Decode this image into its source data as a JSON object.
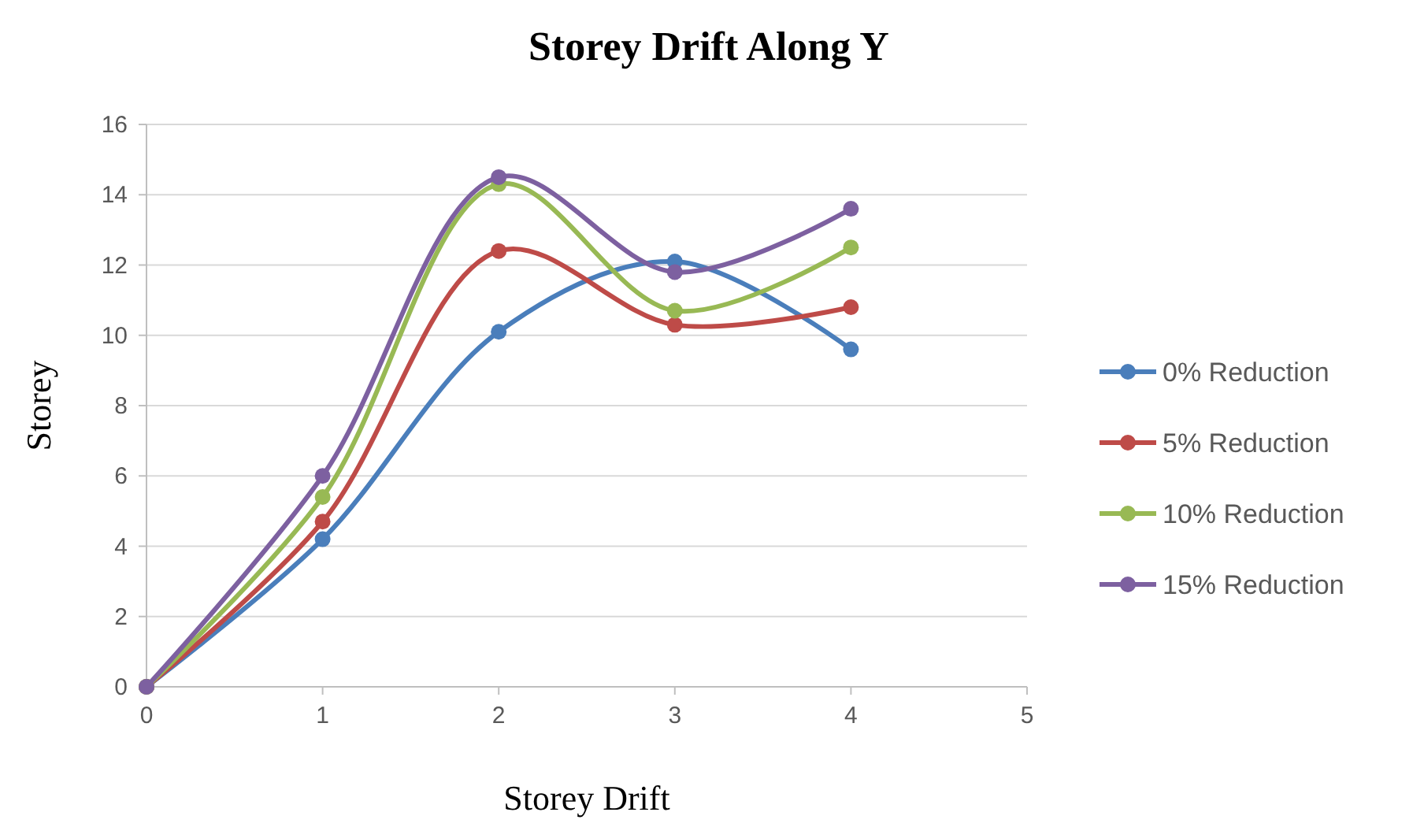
{
  "chart_data": {
    "type": "line",
    "title": "Storey Drift Along Y",
    "xlabel": "Storey Drift",
    "ylabel": "Storey",
    "x": [
      0,
      1,
      2,
      3,
      4
    ],
    "series": [
      {
        "name": "0% Reduction",
        "color": "#4a7ebb",
        "values": [
          0,
          4.2,
          10.1,
          12.1,
          9.6
        ]
      },
      {
        "name": "5% Reduction",
        "color": "#be4b48",
        "values": [
          0,
          4.7,
          12.4,
          10.3,
          10.8
        ]
      },
      {
        "name": "10% Reduction",
        "color": "#98b954",
        "values": [
          0,
          5.4,
          14.3,
          10.7,
          12.5
        ]
      },
      {
        "name": "15% Reduction",
        "color": "#7d60a0",
        "values": [
          0,
          6.0,
          14.5,
          11.8,
          13.6
        ]
      }
    ],
    "xlim": [
      0,
      5
    ],
    "xticks": [
      0,
      1,
      2,
      3,
      4,
      5
    ],
    "ylim": [
      0,
      16
    ],
    "yticks": [
      0,
      2,
      4,
      6,
      8,
      10,
      12,
      14,
      16
    ],
    "grid": "y",
    "legend": "right",
    "marker": "circle",
    "line_style": "solid"
  }
}
